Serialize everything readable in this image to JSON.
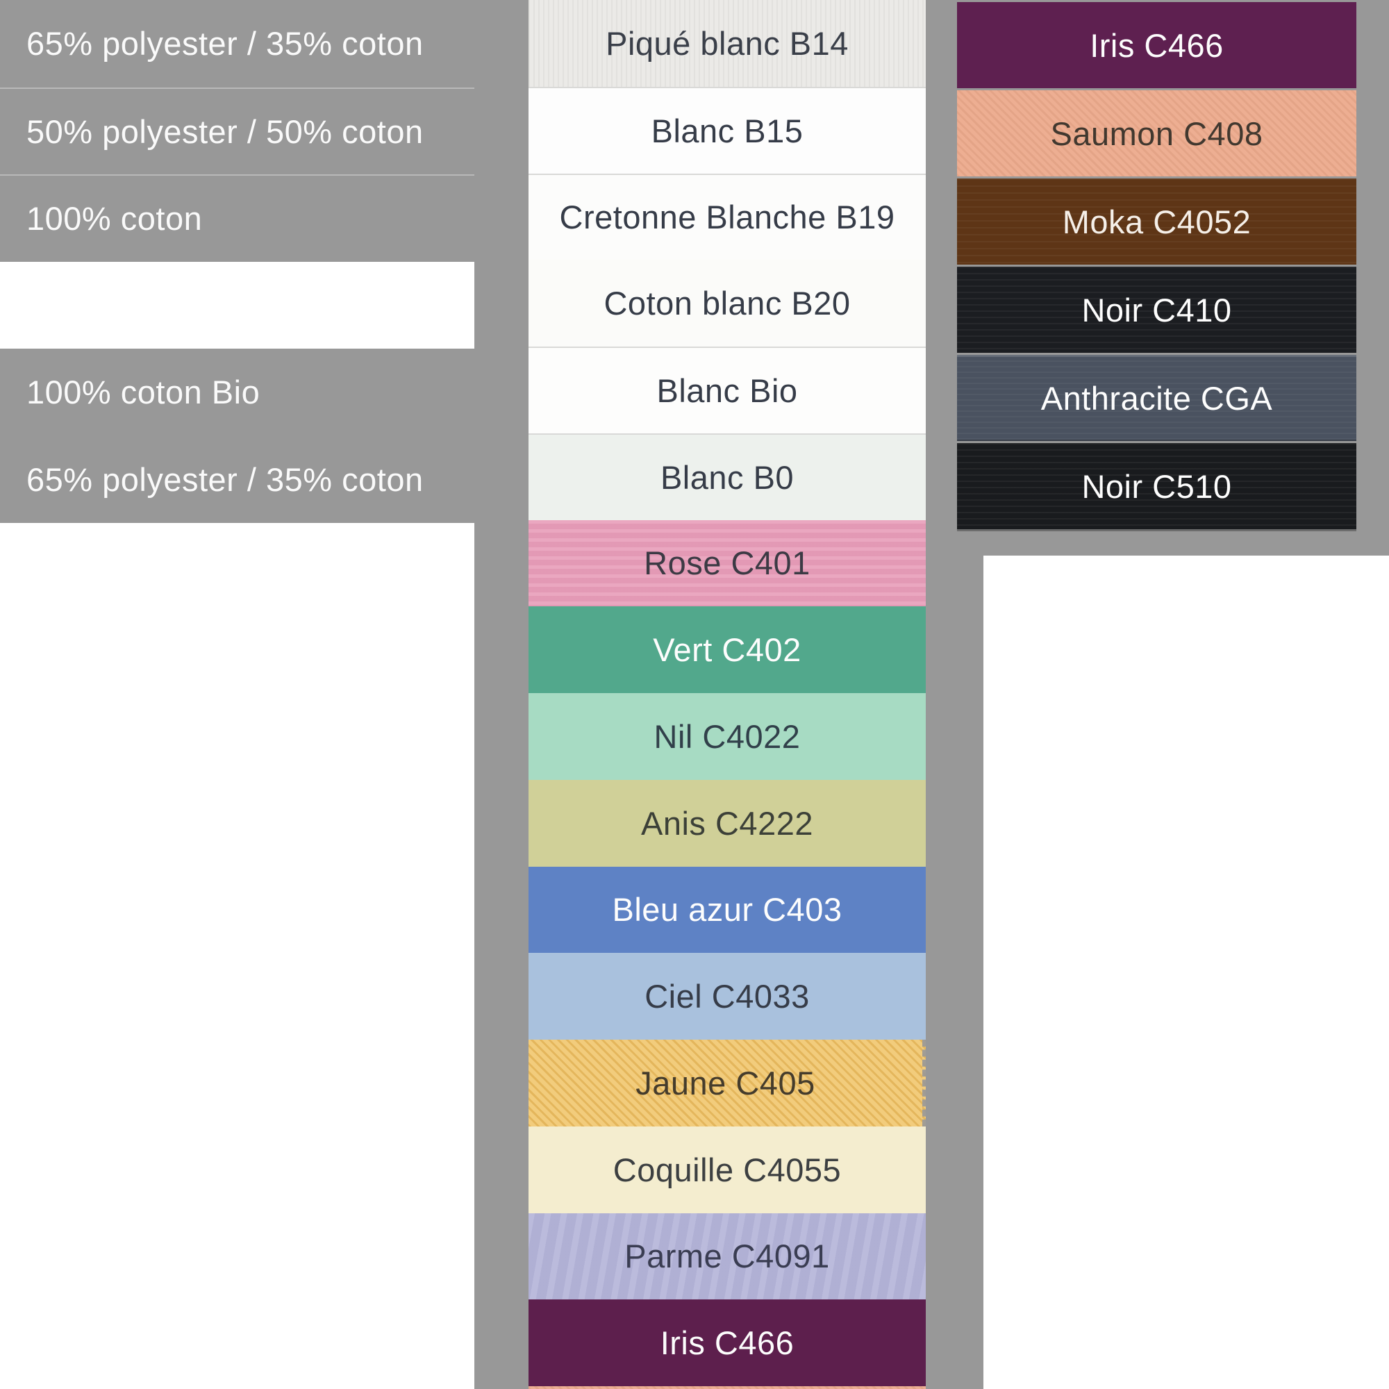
{
  "page": {
    "background": "#989898"
  },
  "left_panel": {
    "text_color": "#fafafa",
    "rows": [
      {
        "label": "65% polyester / 35% coton"
      },
      {
        "label": "50% polyester / 50% coton"
      },
      {
        "label": "100% coton"
      },
      {
        "label": ""
      },
      {
        "label": "100% coton Bio"
      },
      {
        "label": "65% polyester / 35% coton"
      }
    ]
  },
  "middle_column": {
    "rows": [
      {
        "label": "Piqué blanc B14",
        "bg": "#ebeae7",
        "fg": "#3a3f49"
      },
      {
        "label": "Blanc B15",
        "bg": "#fdfdfd",
        "fg": "#363c48"
      },
      {
        "label": "Cretonne Blanche B19",
        "bg": "#fcfcfb",
        "fg": "#363c48"
      },
      {
        "label": "Coton blanc B20",
        "bg": "#fbfbf9",
        "fg": "#363c48"
      },
      {
        "label": "Blanc Bio",
        "bg": "#fdfdfc",
        "fg": "#363c48"
      },
      {
        "label": "Blanc B0",
        "bg": "#edf1ed",
        "fg": "#363c48"
      },
      {
        "label": "Rose C401",
        "bg": "#e89db9",
        "fg": "#3c3a44"
      },
      {
        "label": "Vert C402",
        "bg": "#52a88c",
        "fg": "#fdfdfd"
      },
      {
        "label": "Nil C4022",
        "bg": "#a7dbc3",
        "fg": "#31404a"
      },
      {
        "label": "Anis C4222",
        "bg": "#d0d098",
        "fg": "#3c4038"
      },
      {
        "label": "Bleu azur C403",
        "bg": "#5e82c5",
        "fg": "#fdfdfd"
      },
      {
        "label": "Ciel C4033",
        "bg": "#a9c1dd",
        "fg": "#363c48"
      },
      {
        "label": "Jaune C405",
        "bg": "#f0c466",
        "fg": "#453c2c"
      },
      {
        "label": "Coquille C4055",
        "bg": "#f4edcf",
        "fg": "#3c3f41"
      },
      {
        "label": "Parme C4091",
        "bg": "#b3b3d8",
        "fg": "#3a3d52"
      },
      {
        "label": "Iris C466",
        "bg": "#5d1f4d",
        "fg": "#fdfdfd"
      },
      {
        "label": "",
        "bg": "#ecab8e",
        "fg": "#363c48"
      }
    ]
  },
  "right_column": {
    "rows": [
      {
        "label": "Iris C466",
        "bg": "#5e2050",
        "fg": "#fdfdfd"
      },
      {
        "label": "Saumon C408",
        "bg": "#ecaa8c",
        "fg": "#41382f"
      },
      {
        "label": "Moka C4052",
        "bg": "#5e3516",
        "fg": "#f5efe8"
      },
      {
        "label": "Noir C410",
        "bg": "#1b1d21",
        "fg": "#fdfdfd"
      },
      {
        "label": "Anthracite CGA",
        "bg": "#4a5260",
        "fg": "#fdfdfd"
      },
      {
        "label": "Noir C510",
        "bg": "#191b1e",
        "fg": "#fdfdfd"
      }
    ]
  }
}
